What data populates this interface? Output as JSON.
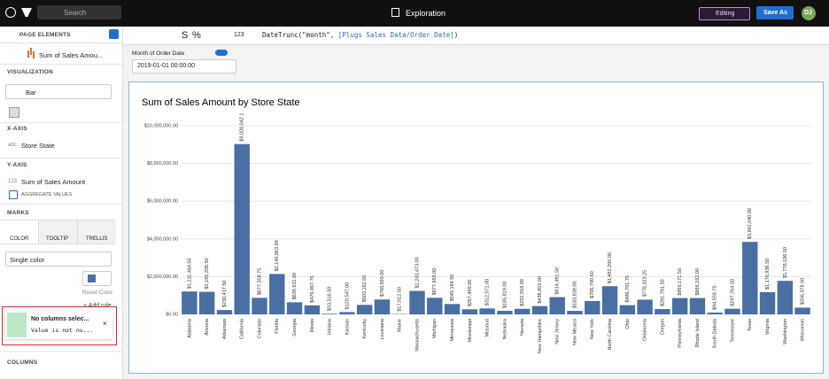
{
  "topbar": {
    "search": "Search",
    "title": "Exploration",
    "mode": "Editing",
    "save": "Save As",
    "avatar": "DJ"
  },
  "toolbar": {
    "currency": "S",
    "percent": "%",
    "number_format": "123",
    "formula": {
      "function": "DateTrunc(\"month\", ",
      "argument": "[Plugs Sales Data/Order Date]",
      "close": ")"
    }
  },
  "filter": {
    "label": "Month of Order Date",
    "value": "2019-01-01 00:00:00"
  },
  "sidebar": {
    "header": "PAGE ELEMENTS",
    "element": "Sum of Sales Amou...",
    "visualization": {
      "heading": "VISUALIZATION",
      "type": "Bar"
    },
    "x_axis": {
      "heading": "X-AXIS",
      "type_icon": "abc",
      "column": "Store State"
    },
    "y_axis": {
      "heading": "Y-AXIS",
      "type_icon": "123",
      "column": "Sum of Sales Amount",
      "option": "AGGREGATE VALUES"
    },
    "marks": {
      "heading": "MARKS",
      "tabs": [
        "COLOR",
        "TOOLTIP",
        "TRELLIS"
      ],
      "color_mode": "Single color",
      "reset": "Reset Color",
      "add_rule": "+ Add rule"
    },
    "toast": {
      "title": "No columns selec...",
      "message": "Value is not nu..."
    },
    "columns": "COLUMNS"
  },
  "chart_data": {
    "type": "bar",
    "title": "Sum of Sales Amount by Store State",
    "categories": [
      "Alabama",
      "Arizona",
      "Arkansas",
      "California",
      "Colorado",
      "Florida",
      "Georgia",
      "Illinois",
      "Indiana",
      "Kansas",
      "Kentucky",
      "Louisiana",
      "Maine",
      "Massachusetts",
      "Michigan",
      "Minnesota",
      "Mississippi",
      "Missouri",
      "Nebraska",
      "Nevada",
      "New Hampshire",
      "New Jersey",
      "New Mexico",
      "New York",
      "North Carolina",
      "Ohio",
      "Oklahoma",
      "Oregon",
      "Pennsylvania",
      "Rhode Island",
      "South Dakota",
      "Tennessee",
      "Texas",
      "Virginia",
      "Washington",
      "Wisconsin"
    ],
    "values": [
      1211464.5,
      1195208.5,
      230417.5,
      9028042.1,
      877358.75,
      2140863,
      639631,
      476467.75,
      33316.5,
      120547,
      503162.5,
      788893,
      17012.5,
      1243473,
      877659,
      549184.5,
      267499,
      312571,
      185819,
      292918,
      438853,
      914491.5,
      183839,
      706790.5,
      1492295,
      486791.75,
      778323.25,
      281701.5,
      865171.5,
      866192,
      94559.75,
      297764.5,
      3842040,
      1176936.5,
      1776536.5,
      356378.5
    ],
    "value_labels": [
      "$1,211,464.50",
      "$1,195,208.50",
      "$230,417.50",
      "$9,028,042.1",
      "$877,358.75",
      "$2,140,863.00",
      "$639,631.00",
      "$476,467.75",
      "$33,316.50",
      "$120,547.00",
      "$503,162.50",
      "$788,893.00",
      "$17,012.50",
      "$1,243,473.00",
      "$877,659.00",
      "$549,184.50",
      "$267,499.00",
      "$312,571.00",
      "$185,819.00",
      "$292,918.00",
      "$438,853.00",
      "$914,491.50",
      "$183,839.00",
      "$706,790.50",
      "$1,492,295.00",
      "$486,791.75",
      "$778,323.25",
      "$281,701.50",
      "$865,171.50",
      "$866,192.00",
      "$94,559.75",
      "$297,764.50",
      "$3,842,040.00",
      "$1,176,936.50",
      "$1,776,536.50",
      "$356,378.50"
    ],
    "color": "#4a6fa3",
    "ylim": [
      0,
      10000000
    ],
    "yticks": [
      {
        "value": 0,
        "label": "$0.00"
      },
      {
        "value": 2000000,
        "label": "$2,000,000.00"
      },
      {
        "value": 4000000,
        "label": "$4,000,000.00"
      },
      {
        "value": 6000000,
        "label": "$6,000,000.00"
      },
      {
        "value": 8000000,
        "label": "$8,000,000.00"
      },
      {
        "value": 10000000,
        "label": "$10,000,000.00"
      }
    ],
    "grid": true
  }
}
